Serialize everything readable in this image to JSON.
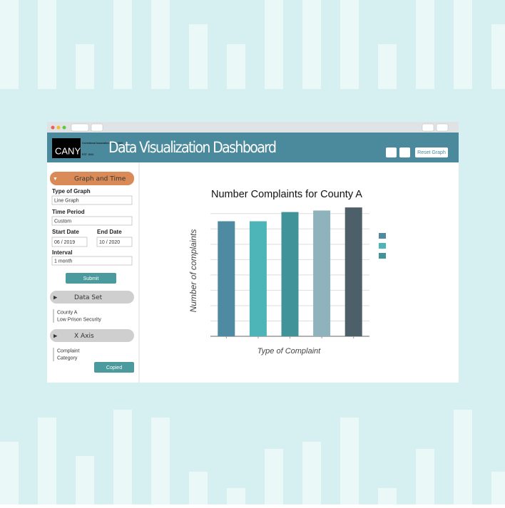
{
  "window": {
    "logo": {
      "name": "CANY",
      "subtitle": "Correctional Association of New York",
      "est": "EST. 1844"
    },
    "header_title": "Data Visualization Dashboard",
    "reset_button": "Reset Graph"
  },
  "sidebar": {
    "graph_and_time": {
      "title": "Graph and Time",
      "type_of_graph": {
        "label": "Type of Graph",
        "value": "Line Graph"
      },
      "time_period": {
        "label": "Time Period",
        "value": "Custom"
      },
      "start_date": {
        "label": "Start Date",
        "value": "06 / 2019"
      },
      "end_date": {
        "label": "End Date",
        "value": "10 / 2020"
      },
      "interval": {
        "label": "Interval",
        "value": "1 month"
      },
      "button": "Submit"
    },
    "data_set": {
      "title": "Data Set",
      "items": [
        "County A",
        "Low Prison Security"
      ]
    },
    "x_axis": {
      "title": "X Axis",
      "items": [
        "Complaint",
        "Category"
      ],
      "button": "Copied"
    }
  },
  "chart_data": {
    "type": "bar",
    "title": "Number Complaints for County A",
    "x_label": "Type of Complaint",
    "y_label": "Number of complaints",
    "categories": [
      null,
      null,
      null,
      null,
      null
    ],
    "values": [
      7.5,
      7.5,
      8.1,
      8.2,
      8.4
    ],
    "colors": [
      "#4f8aa3",
      "#4db5b8",
      "#3f9399",
      "#8fb3bc",
      "#4d5f68"
    ],
    "legend_colors": [
      "#4f8aa3",
      "#4db5b8",
      "#3f9399"
    ],
    "ylim": [
      0,
      8.5
    ],
    "yticks": [
      0,
      1,
      2,
      3,
      4,
      5,
      6,
      7,
      8
    ],
    "grid": true
  }
}
